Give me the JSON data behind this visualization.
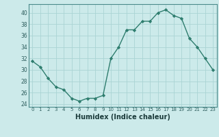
{
  "x": [
    0,
    1,
    2,
    3,
    4,
    5,
    6,
    7,
    8,
    9,
    10,
    11,
    12,
    13,
    14,
    15,
    16,
    17,
    18,
    19,
    20,
    21,
    22,
    23
  ],
  "y": [
    31.5,
    30.5,
    28.5,
    27.0,
    26.5,
    25.0,
    24.5,
    25.0,
    25.0,
    25.5,
    32.0,
    34.0,
    37.0,
    37.0,
    38.5,
    38.5,
    40.0,
    40.5,
    39.5,
    39.0,
    35.5,
    34.0,
    32.0,
    30.0
  ],
  "line_color": "#2e7d6e",
  "marker_color": "#2e7d6e",
  "bg_color": "#cceaea",
  "grid_color": "#aad4d4",
  "xlabel": "Humidex (Indice chaleur)",
  "xlim": [
    -0.5,
    23.5
  ],
  "ylim": [
    23.5,
    41.5
  ],
  "yticks": [
    24,
    26,
    28,
    30,
    32,
    34,
    36,
    38,
    40
  ],
  "xticks": [
    0,
    1,
    2,
    3,
    4,
    5,
    6,
    7,
    8,
    9,
    10,
    11,
    12,
    13,
    14,
    15,
    16,
    17,
    18,
    19,
    20,
    21,
    22,
    23
  ]
}
